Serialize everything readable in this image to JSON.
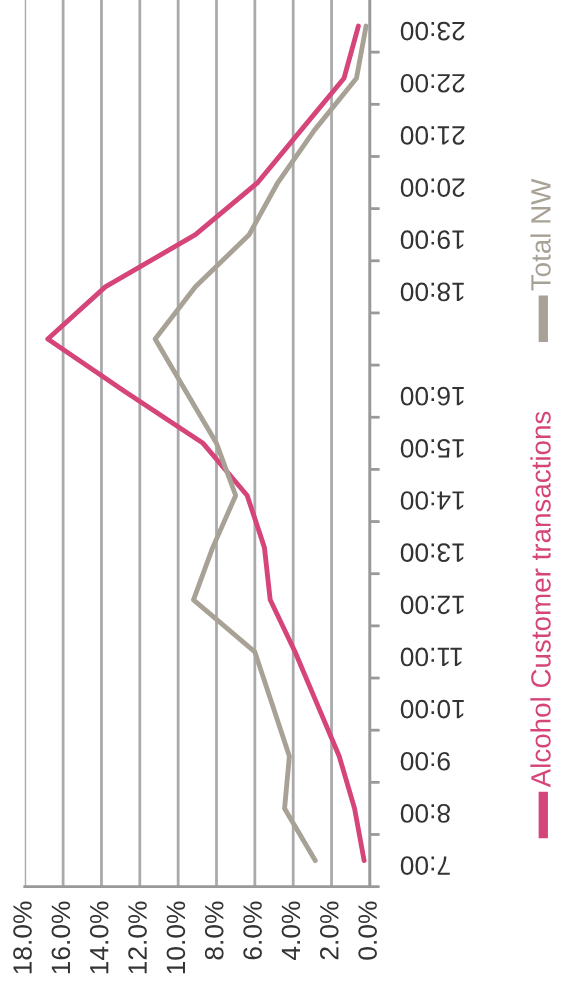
{
  "chart_data": {
    "type": "line",
    "orientation": "horizontal",
    "categories": [
      "23:00",
      "22:00",
      "21:00",
      "20:00",
      "19:00",
      "18:00",
      null,
      "16:00",
      "15:00",
      "14:00",
      "13:00",
      "12:00",
      "11:00",
      "10:00",
      "9:00",
      "8:00",
      "7:00"
    ],
    "series": [
      {
        "name": "Alcohol Customer transactions",
        "color": "#d6457a",
        "values": [
          0.6,
          1.35,
          3.6,
          5.85,
          9.1,
          13.8,
          16.8,
          12.8,
          8.7,
          6.4,
          5.5,
          5.2,
          3.9,
          2.75,
          1.6,
          0.8,
          0.3
        ]
      },
      {
        "name": "Total NW",
        "color": "#a8a196",
        "values": [
          0.2,
          0.7,
          2.9,
          4.8,
          6.3,
          9.1,
          11.2,
          9.6,
          8.0,
          7.0,
          8.2,
          9.2,
          6.0,
          5.1,
          4.2,
          4.45,
          2.85
        ]
      }
    ],
    "xlim": [
      18,
      0
    ],
    "xticks": [
      {
        "value": 18,
        "label": "18.0%"
      },
      {
        "value": 16,
        "label": "16.0%"
      },
      {
        "value": 14,
        "label": "14.0%"
      },
      {
        "value": 12,
        "label": "12.0%"
      },
      {
        "value": 10,
        "label": "10.0%"
      },
      {
        "value": 8,
        "label": "8.0%"
      },
      {
        "value": 6,
        "label": "6.0%"
      },
      {
        "value": 4,
        "label": "4.0%"
      },
      {
        "value": 2,
        "label": "2.0%"
      },
      {
        "value": 0,
        "label": "0.0%"
      }
    ],
    "grid": "x",
    "legend": "right",
    "marker": "none",
    "line_style": "solid"
  }
}
